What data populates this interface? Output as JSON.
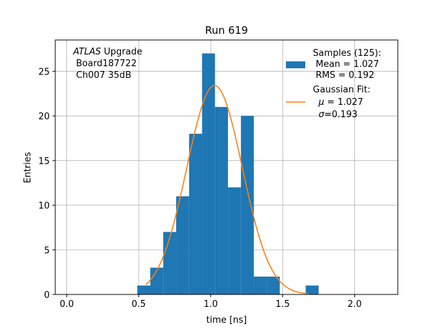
{
  "chart_data": {
    "type": "bar",
    "title": "Run 619",
    "xlabel": "time [ns]",
    "ylabel": "Entries",
    "xlim": [
      -0.08,
      2.3
    ],
    "ylim": [
      0,
      28.5
    ],
    "xticks": [
      0.0,
      0.5,
      1.0,
      1.5,
      2.0
    ],
    "xtick_labels": [
      "0.0",
      "0.5",
      "1.0",
      "1.5",
      "2.0"
    ],
    "yticks": [
      0,
      5,
      10,
      15,
      20,
      25
    ],
    "ytick_labels": [
      "0",
      "5",
      "10",
      "15",
      "20",
      "25"
    ],
    "grid": true,
    "histogram": {
      "color": "#1f77b4",
      "bins": [
        {
          "x0": 0.49,
          "x1": 0.58,
          "count": 1
        },
        {
          "x0": 0.58,
          "x1": 0.67,
          "count": 3
        },
        {
          "x0": 0.67,
          "x1": 0.76,
          "count": 7
        },
        {
          "x0": 0.76,
          "x1": 0.85,
          "count": 11
        },
        {
          "x0": 0.85,
          "x1": 0.94,
          "count": 18
        },
        {
          "x0": 0.94,
          "x1": 1.03,
          "count": 27
        },
        {
          "x0": 1.03,
          "x1": 1.12,
          "count": 21
        },
        {
          "x0": 1.12,
          "x1": 1.21,
          "count": 12
        },
        {
          "x0": 1.21,
          "x1": 1.3,
          "count": 20
        },
        {
          "x0": 1.3,
          "x1": 1.39,
          "count": 2
        },
        {
          "x0": 1.39,
          "x1": 1.48,
          "count": 2
        },
        {
          "x0": 1.66,
          "x1": 1.75,
          "count": 1
        }
      ]
    },
    "gaussian_fit": {
      "color": "#ff7f0e",
      "mu": 1.027,
      "sigma": 0.193,
      "amplitude": 23.4,
      "x_range": [
        0.55,
        1.68
      ]
    },
    "annotation": {
      "italic": "ATLAS",
      "line1_rest": " Upgrade",
      "line2": " Board187722",
      "line3": " Ch007 35dB"
    },
    "legend": {
      "placement": "top-right",
      "samples": {
        "line1": "Samples (125):",
        "line2": " Mean = 1.027",
        "line3": " RMS = 0.192"
      },
      "fit": {
        "line1": "Gaussian Fit:",
        "line2_rest": " = 1.027",
        "line3_rest": "=0.193"
      }
    }
  }
}
